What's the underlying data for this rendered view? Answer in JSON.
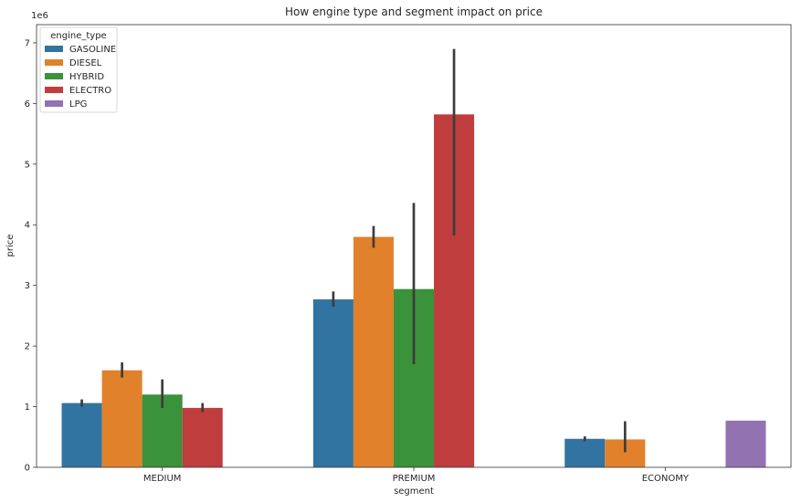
{
  "chart_data": {
    "type": "bar",
    "title": "How engine type and segment impact on price",
    "xlabel": "segment",
    "ylabel": "price",
    "y_offset_label": "1e6",
    "y_scale": 1000000,
    "ylim": [
      0,
      7300000
    ],
    "yticks": [
      0,
      1000000,
      2000000,
      3000000,
      4000000,
      5000000,
      6000000,
      7000000
    ],
    "ytick_labels": [
      "0",
      "1",
      "2",
      "3",
      "4",
      "5",
      "6",
      "7"
    ],
    "categories": [
      "MEDIUM",
      "PREMIUM",
      "ECONOMY"
    ],
    "legend": {
      "title": "engine_type",
      "placement": "top-left"
    },
    "grid": false,
    "series": [
      {
        "name": "GASOLINE",
        "color": "#3274a1",
        "values": [
          1060000,
          2770000,
          470000
        ],
        "err_low": [
          1000000,
          2650000,
          430000
        ],
        "err_high": [
          1120000,
          2900000,
          510000
        ]
      },
      {
        "name": "DIESEL",
        "color": "#e1812c",
        "values": [
          1600000,
          3800000,
          460000
        ],
        "err_low": [
          1480000,
          3620000,
          250000
        ],
        "err_high": [
          1730000,
          3980000,
          760000
        ]
      },
      {
        "name": "HYBRID",
        "color": "#3a923a",
        "values": [
          1200000,
          2940000,
          null
        ],
        "err_low": [
          980000,
          1700000,
          null
        ],
        "err_high": [
          1450000,
          4360000,
          null
        ]
      },
      {
        "name": "ELECTRO",
        "color": "#c03d3e",
        "values": [
          980000,
          5820000,
          null
        ],
        "err_low": [
          910000,
          3820000,
          null
        ],
        "err_high": [
          1060000,
          6900000,
          null
        ]
      },
      {
        "name": "LPG",
        "color": "#9372b2",
        "values": [
          null,
          null,
          770000
        ],
        "err_low": [
          null,
          null,
          null
        ],
        "err_high": [
          null,
          null,
          null
        ]
      }
    ]
  }
}
